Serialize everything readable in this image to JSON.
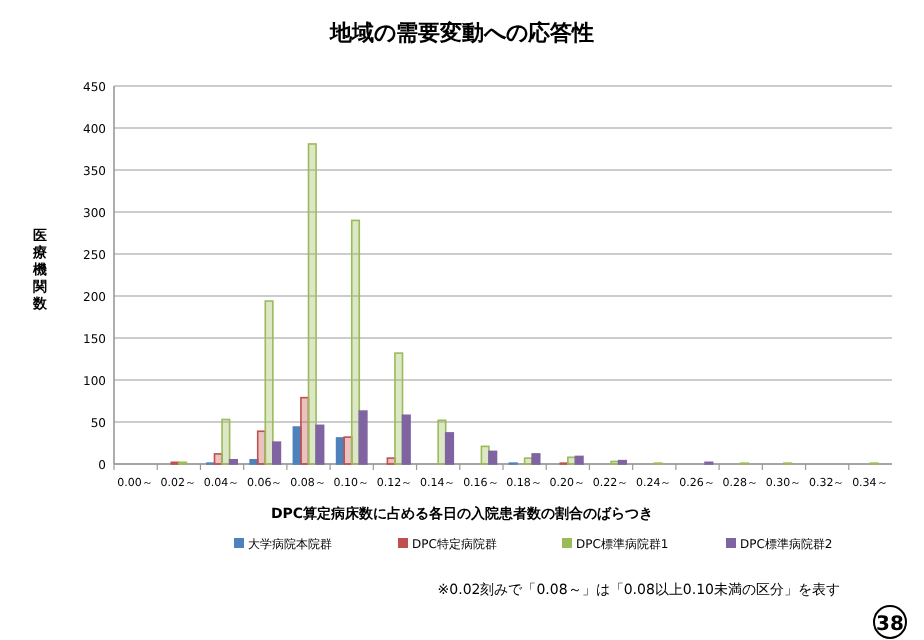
{
  "chart_data": {
    "type": "bar",
    "title": "地域の需要変動への応答性",
    "xlabel": "DPC算定病床数に占める各日の入院患者数の割合のばらつき",
    "ylabel": "医療機関数",
    "categories": [
      "0.00～",
      "0.02～",
      "0.04～",
      "0.06～",
      "0.08～",
      "0.10～",
      "0.12～",
      "0.14～",
      "0.16～",
      "0.18～",
      "0.20～",
      "0.22～",
      "0.24～",
      "0.26～",
      "0.28～",
      "0.30～",
      "0.32～",
      "0.34～"
    ],
    "series": [
      {
        "name": "大学病院本院群",
        "color": "#4f81bd",
        "values": [
          0,
          0,
          1,
          5,
          44,
          31,
          0,
          0,
          0,
          1,
          0,
          0,
          0,
          0,
          0,
          0,
          0,
          0
        ]
      },
      {
        "name": "DPC特定病院群",
        "color": "#c0504d",
        "values": [
          0,
          2,
          12,
          39,
          79,
          32,
          7,
          0,
          0,
          0,
          1,
          0,
          0,
          0,
          0,
          0,
          0,
          0
        ]
      },
      {
        "name": "DPC標準病院群1",
        "color": "#9bbb59",
        "values": [
          0,
          2,
          53,
          194,
          381,
          290,
          132,
          52,
          21,
          7,
          8,
          3,
          1,
          0,
          1,
          1,
          0,
          1
        ]
      },
      {
        "name": "DPC標準病院群2",
        "color": "#8064a2",
        "values": [
          0,
          0,
          5,
          26,
          46,
          63,
          58,
          37,
          15,
          12,
          9,
          4,
          0,
          2,
          0,
          0,
          0,
          0
        ]
      }
    ],
    "ylim": [
      0,
      450
    ],
    "yticks": [
      0,
      50,
      100,
      150,
      200,
      250,
      300,
      350,
      400,
      450
    ],
    "grid": "y",
    "legend": "bottom",
    "annotations": [
      "※0.02刻みで「0.08～」は「0.08以上0.10未満の区分」を表す",
      "38"
    ]
  }
}
